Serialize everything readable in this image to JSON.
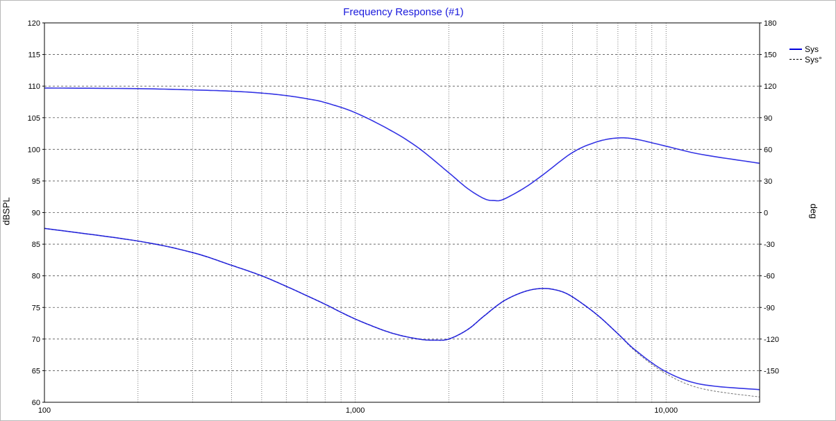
{
  "chart_data": {
    "type": "line",
    "title": "Frequency Response (#1)",
    "xlabel": "",
    "ylabel": "dBSPL",
    "y2label": "deg",
    "xscale": "log",
    "xlim": [
      100,
      20000
    ],
    "ylim": [
      60,
      120
    ],
    "y2lim": [
      -180,
      180
    ],
    "grid": true,
    "legend_position": "top-right",
    "x_ticks": [
      {
        "value": 100,
        "label": "100"
      },
      {
        "value": 1000,
        "label": "1,000"
      },
      {
        "value": 10000,
        "label": "10,000"
      }
    ],
    "y_ticks": [
      60,
      65,
      70,
      75,
      80,
      85,
      90,
      95,
      100,
      105,
      110,
      115,
      120
    ],
    "y2_ticks": [
      -150,
      -120,
      -90,
      -60,
      -30,
      0,
      30,
      60,
      90,
      120,
      150,
      180
    ],
    "series": [
      {
        "name": "Sys",
        "axis": "left",
        "style": "solid",
        "color": "#0000dd",
        "x": [
          100,
          200,
          300,
          400,
          500,
          600,
          700,
          800,
          1000,
          1300,
          1600,
          2000,
          2300,
          2600,
          2800,
          3000,
          3500,
          4000,
          5000,
          6000,
          7000,
          8000,
          10000,
          13000,
          20000
        ],
        "y": [
          109.7,
          109.6,
          109.4,
          109.2,
          108.9,
          108.5,
          108.0,
          107.4,
          105.8,
          103.0,
          100.2,
          96.3,
          93.8,
          92.2,
          91.9,
          92.1,
          93.9,
          95.9,
          99.5,
          101.2,
          101.8,
          101.6,
          100.5,
          99.2,
          97.8
        ]
      },
      {
        "name": "Sys°",
        "axis": "right",
        "style": "dashed",
        "color": "#000000",
        "x": [
          100,
          200,
          300,
          400,
          500,
          600,
          700,
          800,
          1000,
          1300,
          1600,
          1800,
          2000,
          2300,
          2600,
          3000,
          3500,
          4000,
          4500,
          5000,
          6000,
          7000,
          8000,
          10000,
          13000,
          20000
        ],
        "y": [
          -15,
          -27,
          -38,
          -50,
          -60,
          -70,
          -79,
          -87,
          -101,
          -114,
          -120,
          -121,
          -120,
          -111,
          -98,
          -84,
          -75,
          -72,
          -74,
          -80,
          -97,
          -115,
          -132,
          -153,
          -167,
          -175
        ]
      },
      {
        "name": "",
        "axis": "right",
        "style": "solid",
        "color": "#0000dd",
        "x": [
          100,
          200,
          300,
          400,
          500,
          600,
          700,
          800,
          1000,
          1300,
          1600,
          1800,
          2000,
          2300,
          2600,
          3000,
          3500,
          4000,
          4500,
          5000,
          6000,
          7000,
          8000,
          10000,
          13000,
          20000
        ],
        "y": [
          -15,
          -27,
          -38,
          -50,
          -60,
          -70,
          -79,
          -87,
          -101,
          -114,
          -120,
          -121,
          -120,
          -111,
          -98,
          -84,
          -75,
          -72,
          -74,
          -80,
          -97,
          -115,
          -131,
          -151,
          -163,
          -168
        ]
      }
    ]
  },
  "legend": {
    "items": [
      {
        "label": "Sys",
        "style": "solid"
      },
      {
        "label": "Sys°",
        "style": "dashed"
      }
    ]
  },
  "colors": {
    "title": "#1a1adc",
    "line": "#0000dd",
    "grid": "#555555"
  }
}
